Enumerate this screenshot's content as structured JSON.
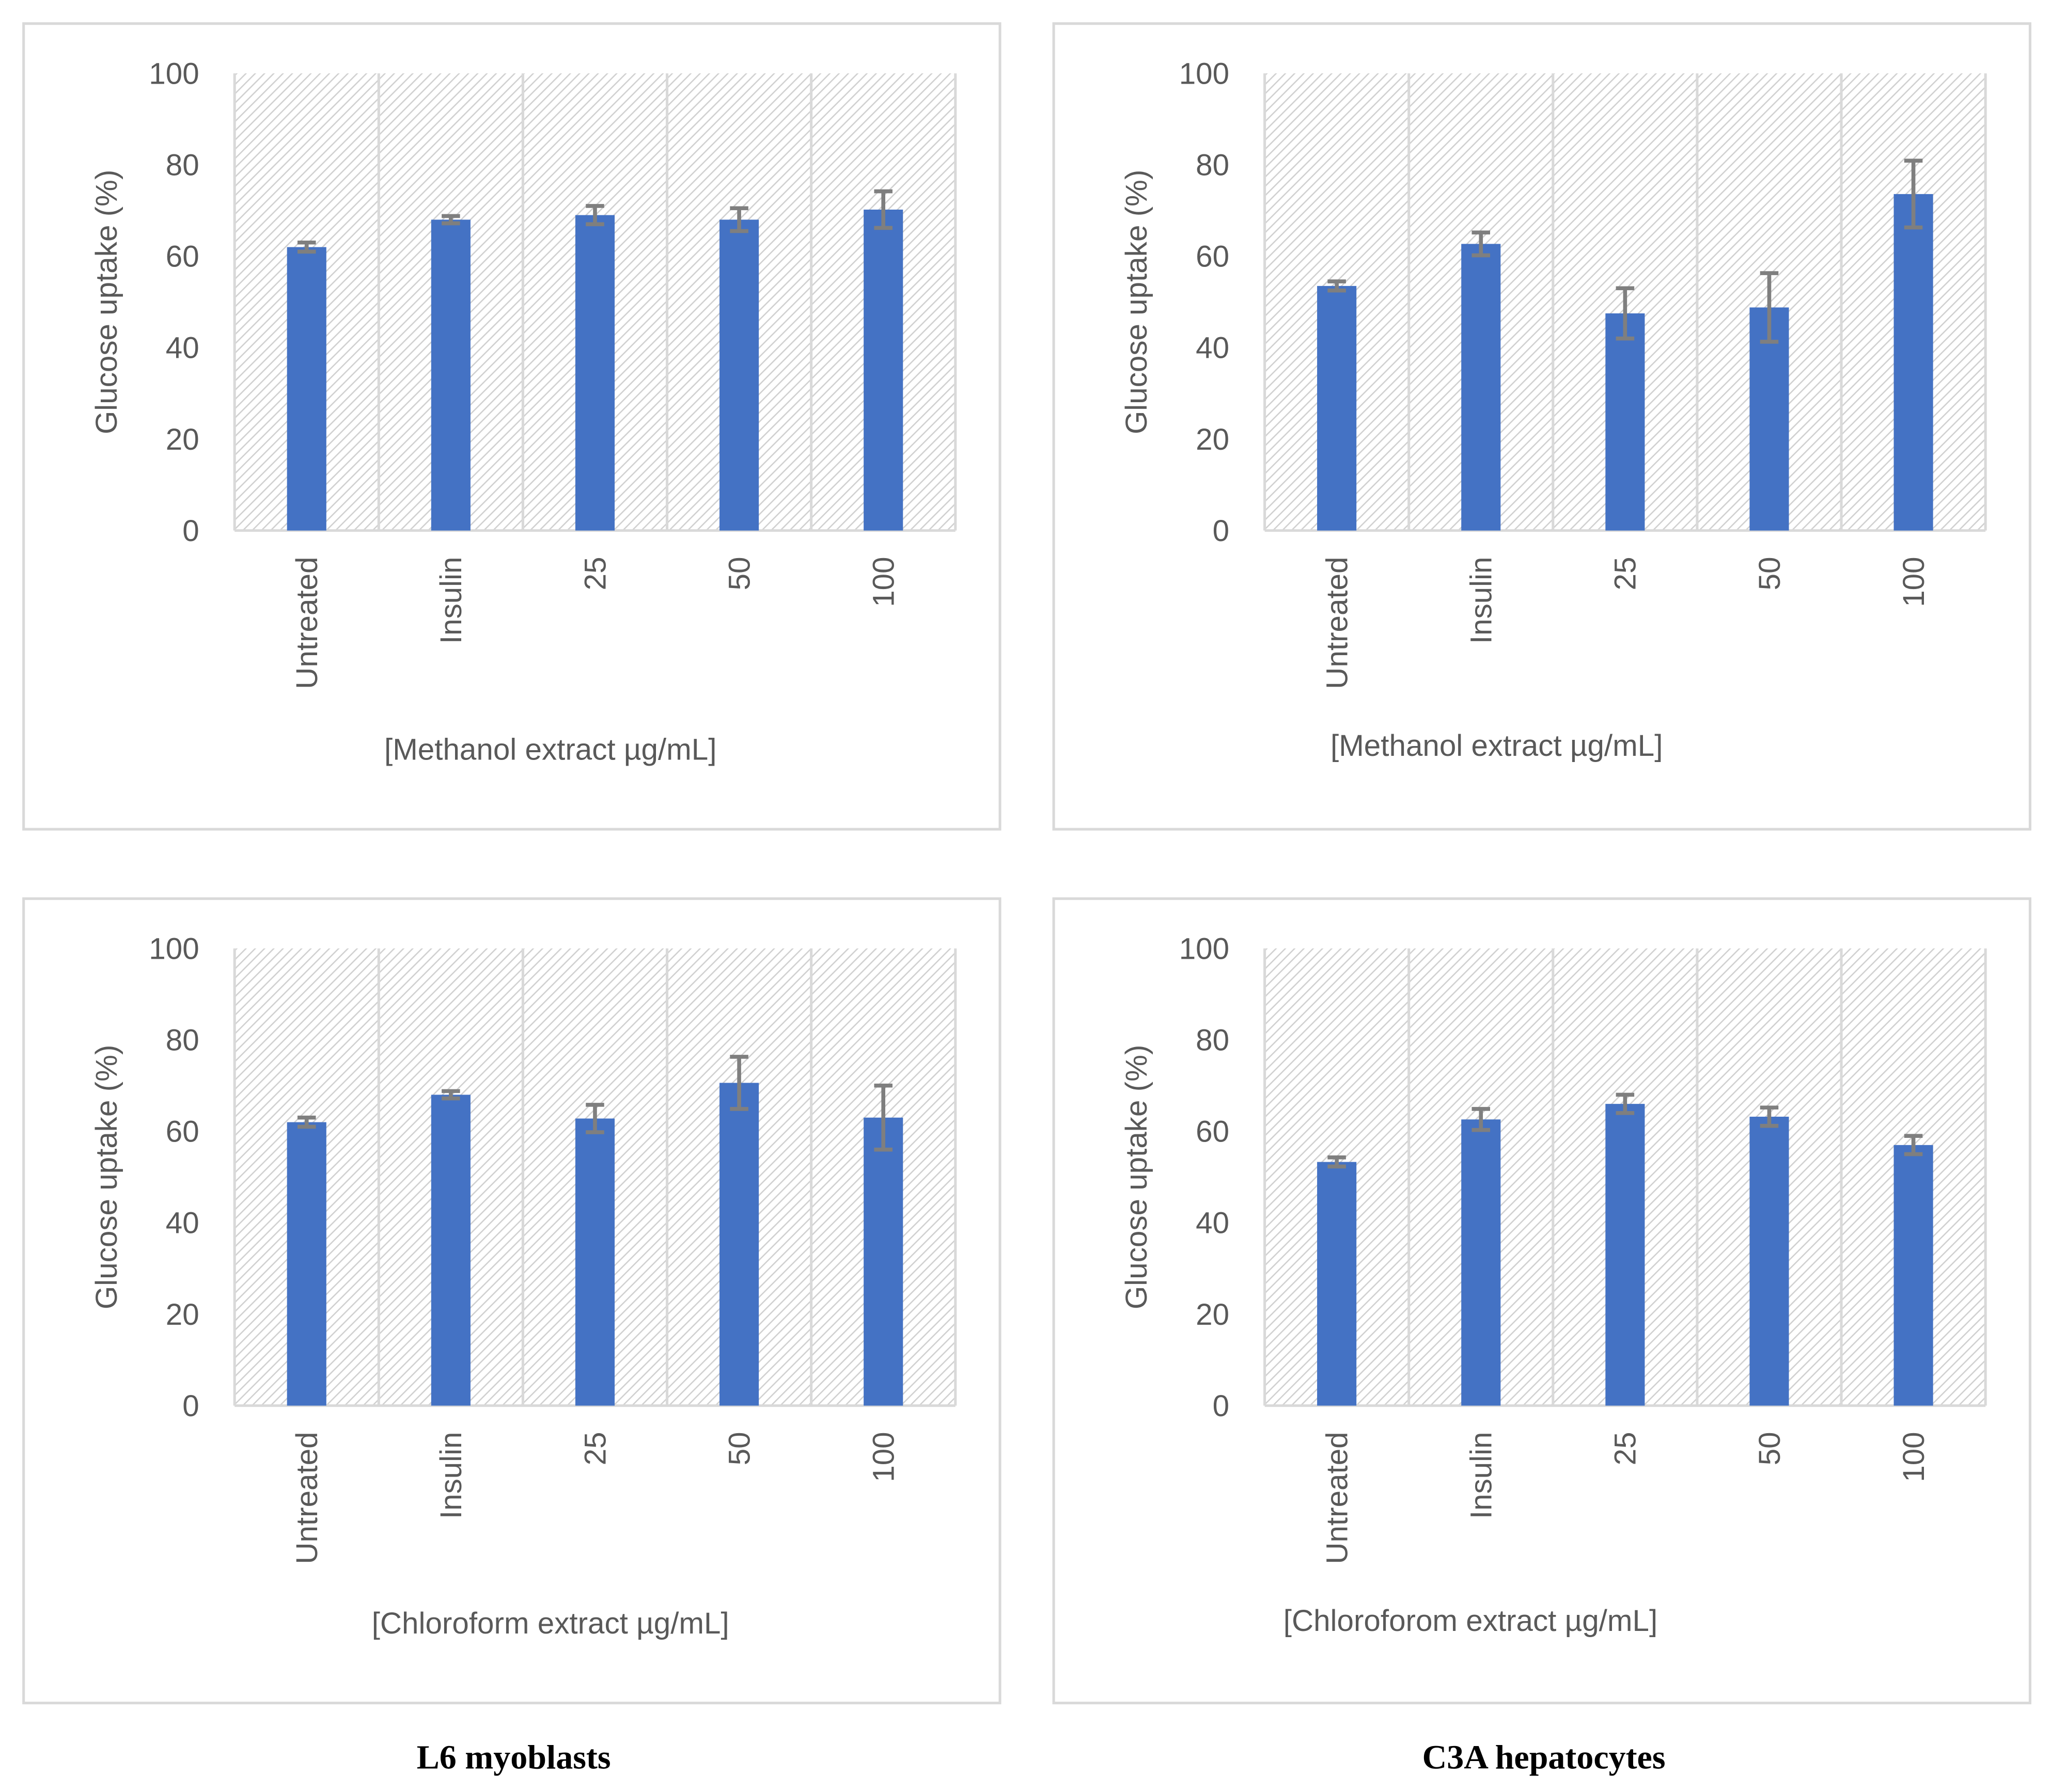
{
  "chart_data": [
    {
      "type": "bar",
      "title": "",
      "group": "L6 myoblasts",
      "categories": [
        "Untreated",
        "Insulin",
        "25",
        "50",
        "100"
      ],
      "values": [
        62,
        68,
        69,
        68,
        70.2
      ],
      "errors": [
        1,
        0.8,
        2,
        2.5,
        4
      ],
      "xlabel": "[Methanol extract µg/mL]",
      "ylabel": "Glucose uptake (%)",
      "ylim": [
        0,
        100
      ],
      "yticks": [
        "0",
        "20",
        "40",
        "60",
        "80",
        "100"
      ],
      "grid": "vertical category separators"
    },
    {
      "type": "bar",
      "title": "",
      "group": "C3A hepatocytes",
      "categories": [
        "Untreated",
        "Insulin",
        "25",
        "50",
        "100"
      ],
      "values": [
        53.5,
        62.7,
        47.5,
        48.8,
        73.6
      ],
      "errors": [
        1,
        2.5,
        5.5,
        7.5,
        7.3
      ],
      "xlabel": "[Methanol extract µg/mL]",
      "ylabel": "Glucose uptake (%)",
      "ylim": [
        0,
        100
      ],
      "yticks": [
        "0",
        "20",
        "40",
        "60",
        "80",
        "100"
      ],
      "grid": "vertical category separators"
    },
    {
      "type": "bar",
      "title": "",
      "group": "L6 myoblasts",
      "categories": [
        "Untreated",
        "Insulin",
        "25",
        "50",
        "100"
      ],
      "values": [
        62,
        68,
        62.8,
        70.6,
        63
      ],
      "errors": [
        1,
        0.8,
        3,
        5.7,
        7
      ],
      "xlabel": "[Chloroform extract µg/mL]",
      "ylabel": "Glucose uptake (%)",
      "ylim": [
        0,
        100
      ],
      "yticks": [
        "0",
        "20",
        "40",
        "60",
        "80",
        "100"
      ],
      "grid": "vertical category separators"
    },
    {
      "type": "bar",
      "title": "",
      "group": "C3A hepatocytes",
      "categories": [
        "Untreated",
        "Insulin",
        "25",
        "50",
        "100"
      ],
      "values": [
        53.3,
        62.6,
        66,
        63.2,
        57
      ],
      "errors": [
        1,
        2.3,
        2,
        2,
        2
      ],
      "xlabel": "[Chloroforom extract µg/mL]",
      "ylabel": "Glucose uptake (%)",
      "ylim": [
        0,
        100
      ],
      "yticks": [
        "0",
        "20",
        "40",
        "60",
        "80",
        "100"
      ],
      "grid": "vertical category separators"
    }
  ],
  "captions": {
    "left": "L6 myoblasts",
    "right": "C3A hepatocytes"
  },
  "colors": {
    "bar": "#4472c4",
    "error": "#7f7f7f",
    "grid": "#d9d9d9",
    "text": "#595959"
  }
}
